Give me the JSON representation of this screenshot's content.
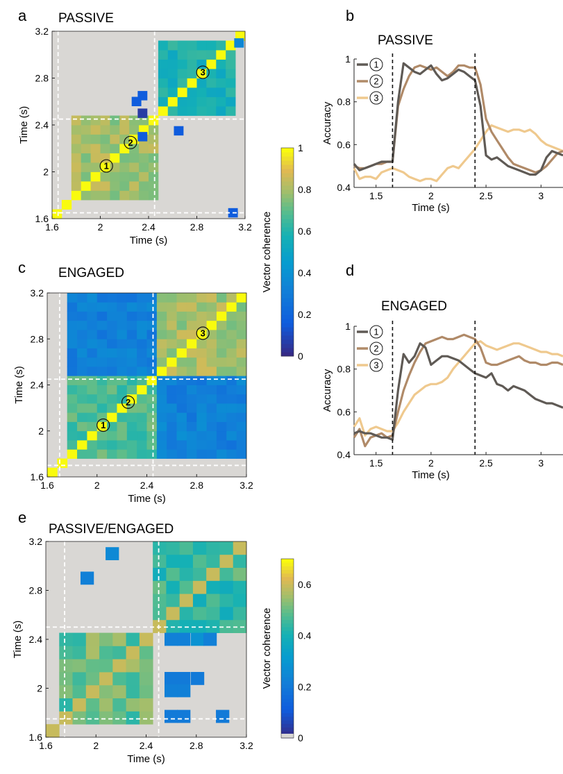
{
  "panels": {
    "a": {
      "letter": "a",
      "title": "PASSIVE"
    },
    "b": {
      "letter": "b",
      "title": "PASSIVE"
    },
    "c": {
      "letter": "c",
      "title": "ENGAGED"
    },
    "d": {
      "letter": "d",
      "title": "ENGAGED"
    },
    "e": {
      "letter": "e",
      "title": "PASSIVE/ENGAGED"
    }
  },
  "colorbars": [
    {
      "label": "Vector coherence",
      "ticks": [
        "0",
        "0.2",
        "0.4",
        "0.6",
        "0.8",
        "1"
      ]
    },
    {
      "label": "Vector coherence",
      "ticks": [
        "0",
        "0.2",
        "0.4",
        "0.6"
      ]
    }
  ],
  "colors": {
    "series1": "#5f5a55",
    "series2": "#b08a68",
    "series3": "#efc98e",
    "nan": "#d9d7d4",
    "gridline": "#ffffff"
  },
  "chart_data": [
    {
      "id": "a",
      "type": "heatmap",
      "xlabel": "Time (s)",
      "ylabel": "Time (s)",
      "xlim": [
        1.6,
        3.2
      ],
      "ylim": [
        1.6,
        3.2
      ],
      "xticks": [
        "1.6",
        "2",
        "2.4",
        "2.8",
        "3.2"
      ],
      "yticks": [
        "1.6",
        "2",
        "2.4",
        "2.8",
        "3.2"
      ],
      "grid_size": 20,
      "epoch_bounds": [
        1.65,
        2.45
      ],
      "epochs": [
        {
          "range": [
            1.8,
            2.45
          ],
          "coherence": 0.8
        },
        {
          "range": [
            2.45,
            3.15
          ],
          "coherence": 0.58
        }
      ],
      "diagonal_coherence": 1,
      "off_block_coherence": null,
      "scatter_blocks": [
        {
          "x": 3.15,
          "y": 3.1,
          "coherence": 0.35
        },
        {
          "x": 2.35,
          "y": 2.65,
          "coherence": 0.15
        },
        {
          "x": 2.3,
          "y": 2.6,
          "coherence": 0.15
        },
        {
          "x": 2.35,
          "y": 2.5,
          "coherence": 0.05
        },
        {
          "x": 2.65,
          "y": 2.35,
          "coherence": 0.15
        },
        {
          "x": 2.35,
          "y": 2.3,
          "coherence": 0.15
        },
        {
          "x": 3.1,
          "y": 1.65,
          "coherence": 0.15
        }
      ],
      "circle_labels": [
        {
          "text": "1",
          "x": 2.05,
          "y": 2.05
        },
        {
          "text": "2",
          "x": 2.25,
          "y": 2.25
        },
        {
          "text": "3",
          "x": 2.85,
          "y": 2.85
        }
      ]
    },
    {
      "id": "b",
      "type": "line",
      "xlabel": "Time (s)",
      "ylabel": "Accuracy",
      "xlim": [
        1.3,
        3.2
      ],
      "ylim": [
        0.4,
        1.0
      ],
      "xticks": [
        "1.5",
        "2",
        "2.5",
        "3"
      ],
      "yticks": [
        "0.4",
        "0.6",
        "0.8",
        "1"
      ],
      "vlines": [
        1.65,
        2.4
      ],
      "x": [
        1.3,
        1.35,
        1.4,
        1.45,
        1.5,
        1.55,
        1.6,
        1.65,
        1.7,
        1.75,
        1.8,
        1.85,
        1.9,
        1.95,
        2.0,
        2.05,
        2.1,
        2.15,
        2.2,
        2.25,
        2.3,
        2.35,
        2.4,
        2.45,
        2.5,
        2.55,
        2.6,
        2.65,
        2.7,
        2.75,
        2.8,
        2.85,
        2.9,
        2.95,
        3.0,
        3.05,
        3.1,
        3.15,
        3.2
      ],
      "series": [
        {
          "name": "1",
          "values": [
            0.51,
            0.48,
            0.49,
            0.5,
            0.51,
            0.52,
            0.52,
            0.52,
            0.8,
            0.98,
            0.96,
            0.94,
            0.93,
            0.95,
            0.97,
            0.93,
            0.9,
            0.91,
            0.93,
            0.95,
            0.94,
            0.92,
            0.9,
            0.78,
            0.55,
            0.53,
            0.54,
            0.52,
            0.5,
            0.49,
            0.48,
            0.47,
            0.46,
            0.46,
            0.48,
            0.54,
            0.57,
            0.56,
            0.55
          ]
        },
        {
          "name": "2",
          "values": [
            0.5,
            0.49,
            0.49,
            0.5,
            0.51,
            0.51,
            0.52,
            0.52,
            0.78,
            0.86,
            0.92,
            0.96,
            0.97,
            0.96,
            0.95,
            0.96,
            0.94,
            0.92,
            0.94,
            0.97,
            0.97,
            0.96,
            0.96,
            0.88,
            0.72,
            0.66,
            0.62,
            0.58,
            0.54,
            0.51,
            0.5,
            0.49,
            0.48,
            0.47,
            0.48,
            0.5,
            0.53,
            0.56,
            0.57
          ]
        },
        {
          "name": "3",
          "values": [
            0.49,
            0.44,
            0.45,
            0.45,
            0.44,
            0.47,
            0.48,
            0.49,
            0.48,
            0.47,
            0.45,
            0.44,
            0.43,
            0.44,
            0.44,
            0.43,
            0.46,
            0.49,
            0.5,
            0.49,
            0.52,
            0.55,
            0.58,
            0.62,
            0.66,
            0.69,
            0.68,
            0.67,
            0.66,
            0.67,
            0.67,
            0.66,
            0.67,
            0.65,
            0.62,
            0.6,
            0.59,
            0.58,
            0.57
          ]
        }
      ]
    },
    {
      "id": "c",
      "type": "heatmap",
      "xlabel": "Time (s)",
      "ylabel": "Time (s)",
      "xlim": [
        1.6,
        3.2
      ],
      "ylim": [
        1.6,
        3.2
      ],
      "xticks": [
        "1.6",
        "2",
        "2.4",
        "2.8",
        "3.2"
      ],
      "yticks": [
        "1.6",
        "2",
        "2.4",
        "2.8",
        "3.2"
      ],
      "grid_size": 20,
      "epoch_bounds": [
        1.7,
        2.45
      ],
      "epochs": [
        {
          "range": [
            1.8,
            2.45
          ],
          "coherence": 0.68
        },
        {
          "range": [
            2.45,
            3.2
          ],
          "coherence": 0.8
        }
      ],
      "diagonal_coherence": 1,
      "off_block_coherence": 0.32,
      "scatter_blocks": [],
      "circle_labels": [
        {
          "text": "1",
          "x": 2.05,
          "y": 2.05
        },
        {
          "text": "2",
          "x": 2.25,
          "y": 2.25
        },
        {
          "text": "3",
          "x": 2.85,
          "y": 2.85
        }
      ]
    },
    {
      "id": "d",
      "type": "line",
      "xlabel": "Time (s)",
      "ylabel": "Accuracy",
      "xlim": [
        1.3,
        3.2
      ],
      "ylim": [
        0.4,
        1.0
      ],
      "xticks": [
        "1.5",
        "2",
        "2.5",
        "3"
      ],
      "yticks": [
        "0.4",
        "0.6",
        "0.8",
        "1"
      ],
      "vlines": [
        1.65,
        2.4
      ],
      "x": [
        1.3,
        1.35,
        1.4,
        1.45,
        1.5,
        1.55,
        1.6,
        1.65,
        1.7,
        1.75,
        1.8,
        1.85,
        1.9,
        1.95,
        2.0,
        2.05,
        2.1,
        2.15,
        2.2,
        2.25,
        2.3,
        2.35,
        2.4,
        2.45,
        2.5,
        2.55,
        2.6,
        2.65,
        2.7,
        2.75,
        2.8,
        2.85,
        2.9,
        2.95,
        3.0,
        3.05,
        3.1,
        3.15,
        3.2
      ],
      "series": [
        {
          "name": "1",
          "values": [
            0.5,
            0.51,
            0.5,
            0.5,
            0.49,
            0.48,
            0.48,
            0.47,
            0.7,
            0.87,
            0.83,
            0.86,
            0.92,
            0.9,
            0.82,
            0.84,
            0.86,
            0.86,
            0.85,
            0.84,
            0.82,
            0.8,
            0.78,
            0.77,
            0.76,
            0.78,
            0.73,
            0.72,
            0.7,
            0.72,
            0.71,
            0.7,
            0.68,
            0.66,
            0.65,
            0.64,
            0.64,
            0.63,
            0.62
          ]
        },
        {
          "name": "2",
          "values": [
            0.48,
            0.52,
            0.44,
            0.48,
            0.49,
            0.5,
            0.48,
            0.49,
            0.6,
            0.7,
            0.77,
            0.83,
            0.88,
            0.92,
            0.93,
            0.94,
            0.95,
            0.94,
            0.94,
            0.95,
            0.96,
            0.95,
            0.94,
            0.9,
            0.83,
            0.82,
            0.82,
            0.83,
            0.84,
            0.85,
            0.86,
            0.84,
            0.83,
            0.83,
            0.82,
            0.82,
            0.83,
            0.83,
            0.82
          ]
        },
        {
          "name": "3",
          "values": [
            0.53,
            0.57,
            0.49,
            0.52,
            0.53,
            0.52,
            0.51,
            0.51,
            0.55,
            0.6,
            0.64,
            0.68,
            0.7,
            0.72,
            0.73,
            0.73,
            0.74,
            0.76,
            0.8,
            0.83,
            0.86,
            0.89,
            0.92,
            0.93,
            0.91,
            0.9,
            0.89,
            0.9,
            0.91,
            0.92,
            0.92,
            0.91,
            0.9,
            0.89,
            0.88,
            0.88,
            0.87,
            0.87,
            0.86
          ]
        }
      ]
    },
    {
      "id": "e",
      "type": "heatmap",
      "xlabel": "Time (s)",
      "ylabel": "Time (s)",
      "xlim": [
        1.6,
        3.2
      ],
      "ylim": [
        1.6,
        3.2
      ],
      "xticks": [
        "1.6",
        "2",
        "2.4",
        "2.8",
        "3.2"
      ],
      "yticks": [
        "1.6",
        "2",
        "2.4",
        "2.8",
        "3.2"
      ],
      "grid_size": 15,
      "epoch_bounds": [
        1.75,
        2.5
      ],
      "epochs": [
        {
          "range": [
            1.75,
            2.5
          ],
          "coherence": 0.5
        },
        {
          "range": [
            2.5,
            3.2
          ],
          "coherence": 0.45
        }
      ],
      "diagonal_coherence": 0.6,
      "off_block_coherence": null,
      "scatter_blocks": [
        {
          "x": 1.93,
          "y": 2.9,
          "coherence": 0.22
        },
        {
          "x": 2.13,
          "y": 3.1,
          "coherence": 0.25
        },
        {
          "x": 2.6,
          "y": 2.4,
          "coherence": 0.22
        },
        {
          "x": 2.7,
          "y": 2.4,
          "coherence": 0.22
        },
        {
          "x": 2.81,
          "y": 2.4,
          "coherence": 0.28
        },
        {
          "x": 2.91,
          "y": 2.4,
          "coherence": 0.22
        },
        {
          "x": 2.6,
          "y": 2.08,
          "coherence": 0.2
        },
        {
          "x": 2.7,
          "y": 2.08,
          "coherence": 0.2
        },
        {
          "x": 2.81,
          "y": 2.08,
          "coherence": 0.2
        },
        {
          "x": 2.6,
          "y": 1.98,
          "coherence": 0.22
        },
        {
          "x": 2.7,
          "y": 1.98,
          "coherence": 0.22
        },
        {
          "x": 2.6,
          "y": 1.77,
          "coherence": 0.2
        },
        {
          "x": 2.7,
          "y": 1.77,
          "coherence": 0.2
        },
        {
          "x": 3.01,
          "y": 1.77,
          "coherence": 0.2
        }
      ],
      "circle_labels": []
    }
  ]
}
